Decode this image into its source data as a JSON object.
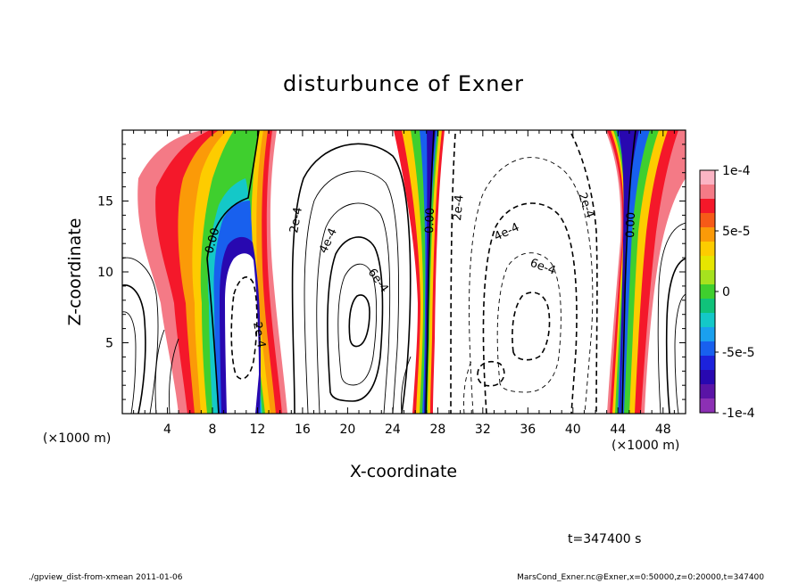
{
  "chart_data": {
    "type": "heatmap",
    "title": "disturbunce of Exner",
    "xlabel": "X-coordinate",
    "ylabel": "Z-coordinate",
    "x_unit": "(×1000 m)",
    "y_unit": "(×1000 m)",
    "xlim": [
      0,
      50
    ],
    "ylim": [
      0,
      20
    ],
    "x_ticks": [
      "4",
      "8",
      "12",
      "16",
      "20",
      "24",
      "28",
      "32",
      "36",
      "40",
      "44",
      "48"
    ],
    "y_ticks": [
      "5",
      "10",
      "15"
    ],
    "colorbar": {
      "range": [
        -0.0001,
        0.0001
      ],
      "tick_labels": [
        "1e-4",
        "5e-5",
        "0",
        "-5e-5",
        "-1e-4"
      ],
      "colors": [
        "#fbb4c4",
        "#f47a86",
        "#f4182a",
        "#f65a18",
        "#fb9a08",
        "#fdcc00",
        "#e6e600",
        "#a6e21e",
        "#3fcf2e",
        "#10c27a",
        "#14c8c8",
        "#1aa0ee",
        "#1860ee",
        "#1c22dc",
        "#2808b0",
        "#5a14a6",
        "#8c30b4"
      ]
    },
    "contour_labels": [
      "0.00",
      "2e-4",
      "4e-4",
      "6e-4",
      "2e-4",
      "0.00",
      "2e-4",
      "4e-4",
      "6e-4",
      "2e-4",
      "0.00"
    ],
    "time_label": "t=347400 s"
  },
  "footer": {
    "left": "./gpview_dist-from-xmean  2011-01-06",
    "right": "MarsCond_Exner.nc@Exner,x=0:50000,z=0:20000,t=347400"
  }
}
